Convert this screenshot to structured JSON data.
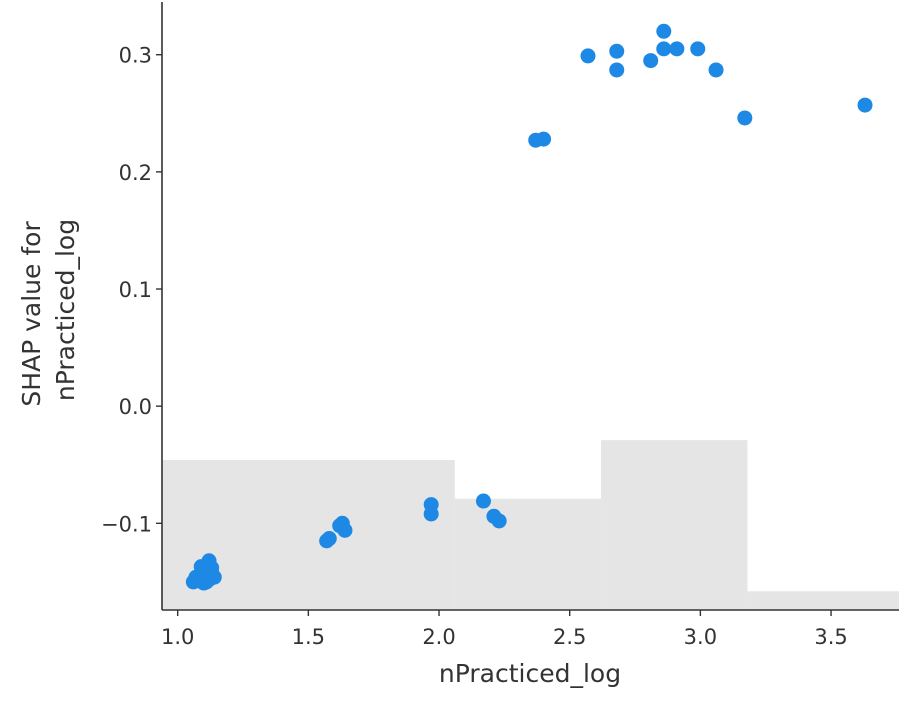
{
  "chart_data": {
    "type": "scatter",
    "title": "",
    "xlabel": "nPracticed_log",
    "ylabel_lines": [
      "SHAP value for",
      "nPracticed_log"
    ],
    "xlim": [
      0.94,
      3.76
    ],
    "ylim": [
      -0.174,
      0.345
    ],
    "xticks": [
      1.0,
      1.5,
      2.0,
      2.5,
      3.0,
      3.5
    ],
    "xtick_labels": [
      "1.0",
      "1.5",
      "2.0",
      "2.5",
      "3.0",
      "3.5"
    ],
    "yticks": [
      -0.1,
      0.0,
      0.1,
      0.2,
      0.3
    ],
    "ytick_labels": [
      "−0.1",
      "0.0",
      "0.1",
      "0.2",
      "0.3"
    ],
    "grid": false,
    "point_color": "#1e88e5",
    "histogram_color": "#e5e5e5",
    "histogram_bins": [
      {
        "x0": 0.94,
        "x1": 2.06,
        "height": 0.128
      },
      {
        "x0": 2.06,
        "x1": 2.62,
        "height": 0.095
      },
      {
        "x0": 2.62,
        "x1": 3.18,
        "height": 0.145
      },
      {
        "x0": 3.18,
        "x1": 3.76,
        "height": 0.016
      }
    ],
    "points": [
      {
        "x": 1.06,
        "y": -0.15
      },
      {
        "x": 1.07,
        "y": -0.146
      },
      {
        "x": 1.08,
        "y": -0.149
      },
      {
        "x": 1.09,
        "y": -0.143
      },
      {
        "x": 1.09,
        "y": -0.137
      },
      {
        "x": 1.1,
        "y": -0.151
      },
      {
        "x": 1.1,
        "y": -0.145
      },
      {
        "x": 1.11,
        "y": -0.14
      },
      {
        "x": 1.12,
        "y": -0.132
      },
      {
        "x": 1.12,
        "y": -0.148
      },
      {
        "x": 1.13,
        "y": -0.142
      },
      {
        "x": 1.13,
        "y": -0.138
      },
      {
        "x": 1.14,
        "y": -0.146
      },
      {
        "x": 1.11,
        "y": -0.15
      },
      {
        "x": 1.57,
        "y": -0.115
      },
      {
        "x": 1.58,
        "y": -0.113
      },
      {
        "x": 1.62,
        "y": -0.102
      },
      {
        "x": 1.63,
        "y": -0.1
      },
      {
        "x": 1.64,
        "y": -0.106
      },
      {
        "x": 1.97,
        "y": -0.084
      },
      {
        "x": 1.97,
        "y": -0.092
      },
      {
        "x": 2.17,
        "y": -0.081
      },
      {
        "x": 2.21,
        "y": -0.094
      },
      {
        "x": 2.23,
        "y": -0.098
      },
      {
        "x": 2.37,
        "y": 0.227
      },
      {
        "x": 2.4,
        "y": 0.228
      },
      {
        "x": 2.57,
        "y": 0.299
      },
      {
        "x": 2.68,
        "y": 0.303
      },
      {
        "x": 2.68,
        "y": 0.287
      },
      {
        "x": 2.81,
        "y": 0.295
      },
      {
        "x": 2.86,
        "y": 0.32
      },
      {
        "x": 2.86,
        "y": 0.305
      },
      {
        "x": 2.91,
        "y": 0.305
      },
      {
        "x": 2.99,
        "y": 0.305
      },
      {
        "x": 3.06,
        "y": 0.287
      },
      {
        "x": 3.17,
        "y": 0.246
      },
      {
        "x": 3.63,
        "y": 0.257
      }
    ]
  }
}
